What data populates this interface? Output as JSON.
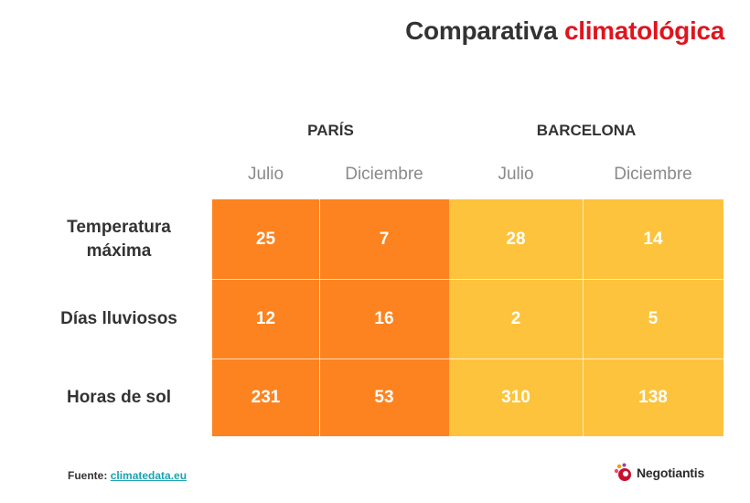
{
  "title": {
    "part1": "Comparativa",
    "part2": "climatológica"
  },
  "chart_data": {
    "type": "table",
    "columns": [
      {
        "city": "PARÍS",
        "months": [
          "Julio",
          "Diciembre"
        ]
      },
      {
        "city": "BARCELONA",
        "months": [
          "Julio",
          "Diciembre"
        ]
      }
    ],
    "rows": [
      {
        "label_line1": "Temperatura",
        "label_line2": "máxima",
        "values": [
          "25",
          "7",
          "28",
          "14"
        ]
      },
      {
        "label_line1": "Días lluviosos",
        "label_line2": "",
        "values": [
          "12",
          "16",
          "2",
          "5"
        ]
      },
      {
        "label_line1": "Horas de sol",
        "label_line2": "",
        "values": [
          "231",
          "53",
          "310",
          "138"
        ]
      }
    ]
  },
  "source": {
    "label": "Fuente:",
    "link": "climatedata.eu"
  },
  "logo": {
    "text": "Negotiantis"
  },
  "colors": {
    "paris": "#fc831f",
    "barcelona": "#fdc33c",
    "title_accent": "#e0141e",
    "link": "#1aa3b0"
  }
}
